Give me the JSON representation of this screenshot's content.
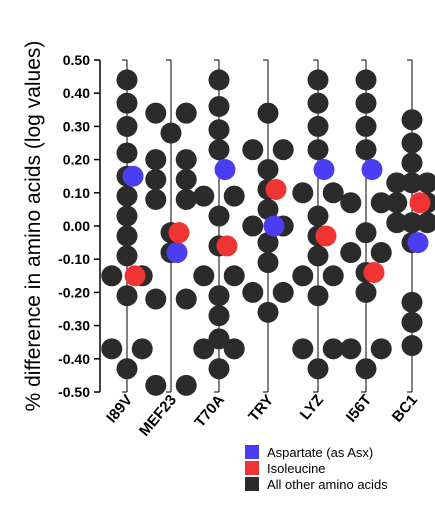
{
  "chart_data": {
    "type": "scatter",
    "ylabel": "% difference in amino acids (log values)",
    "xlabel": "",
    "title": "",
    "ylim": [
      -0.5,
      0.5
    ],
    "yticks": [
      "-0.50",
      "-0.40",
      "-0.30",
      "-0.20",
      "-0.10",
      "0.00",
      "0.10",
      "0.20",
      "0.30",
      "0.40",
      "0.50"
    ],
    "categories": [
      "I89V",
      "MEF23",
      "T70A",
      "TRY",
      "LYZ",
      "I56T",
      "BC1"
    ],
    "series": [
      {
        "name": "Aspartate (as Asx)",
        "color": "#4a3df2",
        "points": [
          {
            "cat": 0,
            "y": 0.15
          },
          {
            "cat": 1,
            "y": -0.08
          },
          {
            "cat": 2,
            "y": 0.17
          },
          {
            "cat": 3,
            "y": 0.0
          },
          {
            "cat": 4,
            "y": 0.17
          },
          {
            "cat": 5,
            "y": 0.17
          },
          {
            "cat": 6,
            "y": -0.05
          }
        ]
      },
      {
        "name": "Isoleucine",
        "color": "#f03434",
        "points": [
          {
            "cat": 0,
            "y": -0.15
          },
          {
            "cat": 1,
            "y": -0.02
          },
          {
            "cat": 2,
            "y": -0.06
          },
          {
            "cat": 3,
            "y": 0.11
          },
          {
            "cat": 4,
            "y": -0.03
          },
          {
            "cat": 5,
            "y": -0.14
          },
          {
            "cat": 6,
            "y": 0.07
          }
        ]
      },
      {
        "name": "All other amino acids",
        "color": "#2b2b2b",
        "points": [
          {
            "cat": 0,
            "y": 0.44
          },
          {
            "cat": 0,
            "y": 0.37
          },
          {
            "cat": 0,
            "y": 0.3
          },
          {
            "cat": 0,
            "y": 0.22
          },
          {
            "cat": 0,
            "y": 0.15
          },
          {
            "cat": 0,
            "y": 0.09
          },
          {
            "cat": 0,
            "y": 0.03
          },
          {
            "cat": 0,
            "y": -0.03
          },
          {
            "cat": 0,
            "y": -0.09
          },
          {
            "cat": 0,
            "y": -0.15
          },
          {
            "cat": 0,
            "y": -0.15
          },
          {
            "cat": 0,
            "y": -0.21
          },
          {
            "cat": 0,
            "y": -0.37
          },
          {
            "cat": 0,
            "y": -0.37
          },
          {
            "cat": 0,
            "y": -0.43
          },
          {
            "cat": 1,
            "y": 0.34
          },
          {
            "cat": 1,
            "y": 0.34
          },
          {
            "cat": 1,
            "y": 0.28
          },
          {
            "cat": 1,
            "y": 0.2
          },
          {
            "cat": 1,
            "y": 0.2
          },
          {
            "cat": 1,
            "y": 0.14
          },
          {
            "cat": 1,
            "y": 0.14
          },
          {
            "cat": 1,
            "y": 0.08
          },
          {
            "cat": 1,
            "y": 0.08
          },
          {
            "cat": 1,
            "y": -0.02
          },
          {
            "cat": 1,
            "y": -0.08
          },
          {
            "cat": 1,
            "y": -0.22
          },
          {
            "cat": 1,
            "y": -0.22
          },
          {
            "cat": 1,
            "y": -0.48
          },
          {
            "cat": 1,
            "y": -0.48
          },
          {
            "cat": 2,
            "y": 0.44
          },
          {
            "cat": 2,
            "y": 0.36
          },
          {
            "cat": 2,
            "y": 0.29
          },
          {
            "cat": 2,
            "y": 0.23
          },
          {
            "cat": 2,
            "y": 0.09
          },
          {
            "cat": 2,
            "y": 0.09
          },
          {
            "cat": 2,
            "y": 0.03
          },
          {
            "cat": 2,
            "y": -0.06
          },
          {
            "cat": 2,
            "y": -0.15
          },
          {
            "cat": 2,
            "y": -0.15
          },
          {
            "cat": 2,
            "y": -0.21
          },
          {
            "cat": 2,
            "y": -0.27
          },
          {
            "cat": 2,
            "y": -0.34
          },
          {
            "cat": 2,
            "y": -0.37
          },
          {
            "cat": 2,
            "y": -0.37
          },
          {
            "cat": 2,
            "y": -0.43
          },
          {
            "cat": 3,
            "y": 0.34
          },
          {
            "cat": 3,
            "y": 0.23
          },
          {
            "cat": 3,
            "y": 0.23
          },
          {
            "cat": 3,
            "y": 0.17
          },
          {
            "cat": 3,
            "y": 0.11
          },
          {
            "cat": 3,
            "y": 0.05
          },
          {
            "cat": 3,
            "y": 0.0
          },
          {
            "cat": 3,
            "y": 0.0
          },
          {
            "cat": 3,
            "y": -0.05
          },
          {
            "cat": 3,
            "y": -0.11
          },
          {
            "cat": 3,
            "y": -0.2
          },
          {
            "cat": 3,
            "y": -0.2
          },
          {
            "cat": 3,
            "y": -0.26
          },
          {
            "cat": 4,
            "y": 0.44
          },
          {
            "cat": 4,
            "y": 0.37
          },
          {
            "cat": 4,
            "y": 0.3
          },
          {
            "cat": 4,
            "y": 0.23
          },
          {
            "cat": 4,
            "y": 0.1
          },
          {
            "cat": 4,
            "y": 0.1
          },
          {
            "cat": 4,
            "y": 0.03
          },
          {
            "cat": 4,
            "y": -0.03
          },
          {
            "cat": 4,
            "y": -0.09
          },
          {
            "cat": 4,
            "y": -0.15
          },
          {
            "cat": 4,
            "y": -0.15
          },
          {
            "cat": 4,
            "y": -0.21
          },
          {
            "cat": 4,
            "y": -0.37
          },
          {
            "cat": 4,
            "y": -0.37
          },
          {
            "cat": 4,
            "y": -0.43
          },
          {
            "cat": 5,
            "y": 0.44
          },
          {
            "cat": 5,
            "y": 0.37
          },
          {
            "cat": 5,
            "y": 0.3
          },
          {
            "cat": 5,
            "y": 0.23
          },
          {
            "cat": 5,
            "y": 0.07
          },
          {
            "cat": 5,
            "y": 0.07
          },
          {
            "cat": 5,
            "y": -0.02
          },
          {
            "cat": 5,
            "y": -0.08
          },
          {
            "cat": 5,
            "y": -0.08
          },
          {
            "cat": 5,
            "y": -0.14
          },
          {
            "cat": 5,
            "y": -0.2
          },
          {
            "cat": 5,
            "y": -0.37
          },
          {
            "cat": 5,
            "y": -0.37
          },
          {
            "cat": 5,
            "y": -0.43
          },
          {
            "cat": 6,
            "y": 0.32
          },
          {
            "cat": 6,
            "y": 0.25
          },
          {
            "cat": 6,
            "y": 0.19
          },
          {
            "cat": 6,
            "y": 0.13
          },
          {
            "cat": 6,
            "y": 0.13
          },
          {
            "cat": 6,
            "y": 0.13
          },
          {
            "cat": 6,
            "y": 0.07
          },
          {
            "cat": 6,
            "y": 0.07
          },
          {
            "cat": 6,
            "y": 0.01
          },
          {
            "cat": 6,
            "y": 0.01
          },
          {
            "cat": 6,
            "y": 0.01
          },
          {
            "cat": 6,
            "y": -0.05
          },
          {
            "cat": 6,
            "y": -0.23
          },
          {
            "cat": 6,
            "y": -0.29
          },
          {
            "cat": 6,
            "y": -0.36
          }
        ]
      }
    ],
    "grid": false,
    "legend_position": "bottom-right"
  }
}
